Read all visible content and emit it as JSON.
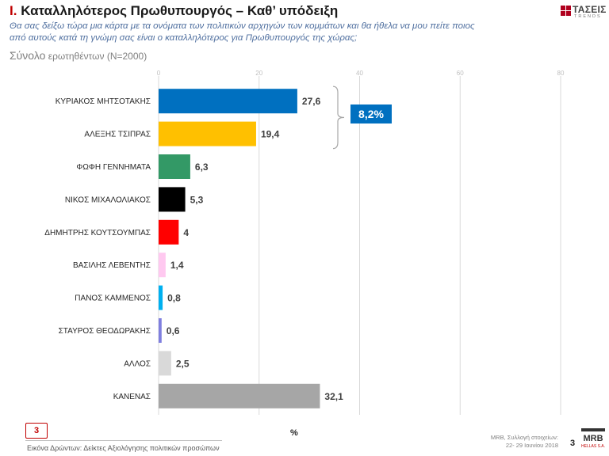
{
  "header": {
    "roman": "I.",
    "title": "Καταλληλότερος  Πρωθυπουργός – Καθ’ υπόδειξη",
    "question": "Θα σας δείξω τώρα μια κάρτα με τα ονόματα των πολιτικών αρχηγών των κομμάτων και θα ήθελα να μου πείτε ποιος από αυτούς κατά τη γνώμη σας είναι ο καταλληλότερος για Πρωθυπουργός της χώρας;",
    "sample_big": "Σύνολο",
    "sample_rest": " ερωτηθέντων (Ν=2000)"
  },
  "logo_top": {
    "name": "ΤΑΣΕΙΣ",
    "sub": "TRENDS",
    "color": "#b0001e"
  },
  "callout": {
    "label": "8,2%",
    "color": "#0070c0"
  },
  "chart_data": {
    "type": "bar",
    "orientation": "horizontal",
    "categories": [
      "ΚΥΡΙΑΚΟΣ ΜΗΤΣΟΤΑΚΗΣ",
      "ΑΛΕΞΗΣ ΤΣΙΠΡΑΣ",
      "ΦΩΦΗ ΓΕΝΝΗΜΑΤΑ",
      "ΝΙΚΟΣ ΜΙΧΑΛΟΛΙΑΚΟΣ",
      "ΔΗΜΗΤΡΗΣ ΚΟΥΤΣΟΥΜΠΑΣ",
      "ΒΑΣΙΛΗΣ ΛΕΒΕΝΤΗΣ",
      "ΠΑΝΟΣ ΚΑΜΜΕΝΟΣ",
      "ΣΤΑΥΡΟΣ ΘΕΟΔΩΡΑΚΗΣ",
      "ΑΛΛΟΣ",
      "ΚΑΝΕΝΑΣ"
    ],
    "values": [
      27.6,
      19.4,
      6.3,
      5.3,
      4,
      1.4,
      0.8,
      0.6,
      2.5,
      32.1
    ],
    "value_labels": [
      "27,6",
      "19,4",
      "6,3",
      "5,3",
      "4",
      "1,4",
      "0,8",
      "0,6",
      "2,5",
      "32,1"
    ],
    "colors": [
      "#0070c0",
      "#ffc000",
      "#339966",
      "#000000",
      "#ff0000",
      "#ffc9f0",
      "#00b0f0",
      "#7f7fdf",
      "#d9d9d9",
      "#a6a6a6"
    ],
    "xlim": [
      0,
      80
    ],
    "xticks": [
      0,
      20,
      40,
      60,
      80
    ],
    "xlabel": "%",
    "grid": true
  },
  "footer": {
    "page_box": "3",
    "caption": "Εικόνα Δρώντων: Δείκτες Αξιολόγησης πολιτικών προσώπων",
    "source_line1": "MRB, Συλλογή στοιχείων:",
    "source_line2": "22- 29 Ιουνίου 2018",
    "page_number": "3",
    "mrb_mark": "MRB",
    "mrb_sub": "HELLAS S.A."
  }
}
